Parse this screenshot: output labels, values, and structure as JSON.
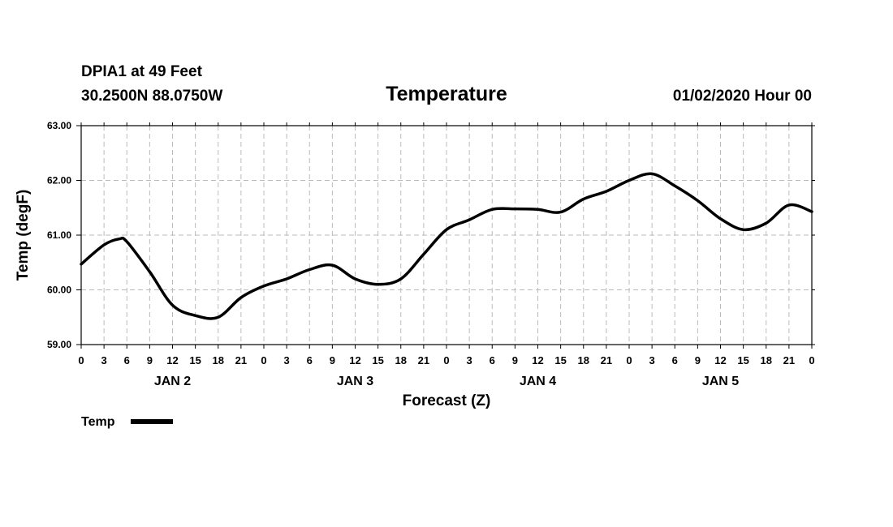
{
  "header": {
    "station": "DPIA1 at 49 Feet",
    "coords": "30.2500N 88.0750W",
    "date": "01/02/2020 Hour 00"
  },
  "legend": {
    "label": "Temp"
  },
  "chart_data": {
    "type": "line",
    "title": "Temperature",
    "xlabel": "Forecast (Z)",
    "ylabel": "Temp (degF)",
    "ylim": [
      59.0,
      63.0
    ],
    "y_ticks": [
      "59.00",
      "60.00",
      "61.00",
      "62.00",
      "63.00"
    ],
    "x_tick_labels": [
      "0",
      "3",
      "6",
      "9",
      "12",
      "15",
      "18",
      "21",
      "0",
      "3",
      "6",
      "9",
      "12",
      "15",
      "18",
      "21",
      "0",
      "3",
      "6",
      "9",
      "12",
      "15",
      "18",
      "21",
      "0",
      "3",
      "6",
      "9",
      "12",
      "15",
      "18",
      "21",
      "0"
    ],
    "x_unit": "forecast hour",
    "xlim": [
      0,
      96
    ],
    "day_labels": [
      {
        "label": "JAN 2",
        "hour": 12
      },
      {
        "label": "JAN 3",
        "hour": 36
      },
      {
        "label": "JAN 4",
        "hour": 60
      },
      {
        "label": "JAN 5",
        "hour": 84
      }
    ],
    "grid": true,
    "series": [
      {
        "name": "Temp",
        "color": "#000000",
        "x": [
          0,
          3,
          5,
          6,
          9,
          12,
          15,
          18,
          21,
          24,
          27,
          30,
          33,
          36,
          39,
          42,
          45,
          48,
          51,
          54,
          57,
          60,
          63,
          66,
          69,
          72,
          75,
          78,
          81,
          84,
          87,
          90,
          93,
          96
        ],
        "values": [
          60.47,
          60.82,
          60.93,
          60.88,
          60.33,
          59.72,
          59.53,
          59.5,
          59.86,
          60.07,
          60.2,
          60.37,
          60.45,
          60.2,
          60.1,
          60.2,
          60.65,
          61.1,
          61.28,
          61.47,
          61.48,
          61.47,
          61.42,
          61.66,
          61.8,
          62.0,
          62.12,
          61.9,
          61.63,
          61.3,
          61.1,
          61.22,
          61.55,
          61.43
        ]
      }
    ]
  }
}
